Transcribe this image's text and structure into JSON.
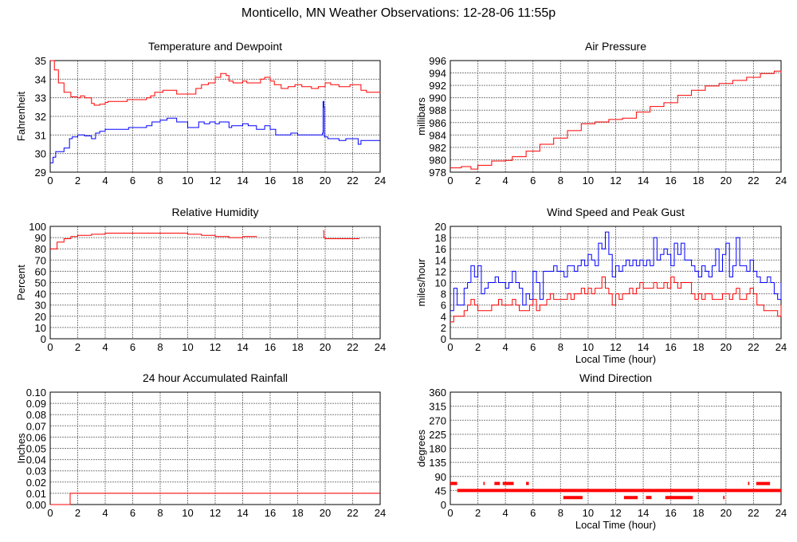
{
  "title": "Monticello, MN Weather Observations: 12-28-06 11:55p",
  "colors": {
    "red": "#ff0000",
    "blue": "#0000ff",
    "grid": "#808080"
  },
  "chart_data": [
    {
      "type": "line",
      "title": "Temperature and Dewpoint",
      "xlabel": "",
      "ylabel": "Fahrenheit",
      "xlim": [
        0,
        24
      ],
      "ylim": [
        29,
        35
      ],
      "xticks": [
        0,
        2,
        4,
        6,
        8,
        10,
        12,
        14,
        16,
        18,
        20,
        22,
        24
      ],
      "yticks": [
        29,
        30,
        31,
        32,
        33,
        34,
        35
      ],
      "grid": true,
      "series": [
        {
          "name": "Temperature",
          "color": "#ff0000",
          "x": [
            0,
            0.3,
            0.6,
            1,
            1.5,
            2,
            2.2,
            2.5,
            3,
            3.2,
            3.6,
            4,
            4.2,
            5.5,
            5.6,
            6.5,
            7,
            7.3,
            7.6,
            8,
            8.2,
            9,
            9.2,
            10.3,
            10.6,
            11,
            11.5,
            12,
            12.4,
            12.8,
            13,
            13.3,
            13.8,
            14,
            14.3,
            15,
            15.3,
            15.6,
            16,
            16.3,
            16.8,
            17.3,
            17.8,
            18.3,
            19,
            19.5,
            20,
            20.4,
            21,
            21.8,
            22.2,
            22.6,
            23,
            23.8,
            24
          ],
          "y": [
            35,
            34.5,
            33.8,
            33.3,
            33.05,
            33,
            33.1,
            33,
            32.7,
            32.6,
            32.65,
            32.75,
            32.8,
            32.8,
            32.9,
            32.9,
            33,
            33.1,
            33.3,
            33.3,
            33.4,
            33.4,
            33.2,
            33.2,
            33.5,
            33.7,
            33.8,
            34.1,
            34.3,
            34.2,
            33.9,
            33.8,
            33.8,
            33.9,
            33.8,
            33.8,
            34,
            34.1,
            33.9,
            33.7,
            33.5,
            33.6,
            33.7,
            33.6,
            33.5,
            33.6,
            33.8,
            33.7,
            33.6,
            33.7,
            33.7,
            33.4,
            33.3,
            33.3,
            33.25
          ]
        },
        {
          "name": "Dewpoint",
          "color": "#0000ff",
          "x": [
            0,
            0.2,
            0.4,
            1,
            1.4,
            1.6,
            2,
            2.5,
            3,
            3.3,
            3.6,
            4,
            5.5,
            5.7,
            7,
            7.4,
            8,
            8.5,
            9,
            9.2,
            9.8,
            10,
            10.4,
            10.8,
            11.2,
            11.6,
            12,
            12.3,
            13,
            13.2,
            14,
            14.4,
            15,
            15.6,
            16,
            16.4,
            17.5,
            18,
            19.5,
            19.8,
            19.85,
            19.9,
            19.95,
            20.2,
            21,
            21.5,
            22,
            22.4,
            22.6,
            24
          ],
          "y": [
            29.5,
            29.8,
            30.1,
            30.3,
            30.8,
            30.9,
            31,
            30.95,
            30.8,
            31.1,
            31.2,
            31.3,
            31.3,
            31.4,
            31.5,
            31.7,
            31.8,
            31.9,
            31.9,
            31.7,
            31.7,
            31.4,
            31.4,
            31.7,
            31.6,
            31.7,
            31.6,
            31.7,
            31.4,
            31.5,
            31.6,
            31.5,
            31.3,
            31.5,
            31.3,
            31,
            31.1,
            31,
            31,
            31.1,
            32.8,
            32.5,
            30.9,
            30.8,
            30.7,
            30.8,
            30.8,
            30.5,
            30.7,
            30.7
          ]
        }
      ]
    },
    {
      "type": "line",
      "title": "Air Pressure",
      "xlabel": "",
      "ylabel": "millibars",
      "xlim": [
        0,
        24
      ],
      "ylim": [
        978,
        996
      ],
      "xticks": [
        0,
        2,
        4,
        6,
        8,
        10,
        12,
        14,
        16,
        18,
        20,
        22,
        24
      ],
      "yticks": [
        978,
        980,
        982,
        984,
        986,
        988,
        990,
        992,
        994,
        996
      ],
      "grid": true,
      "series": [
        {
          "name": "Pressure",
          "color": "#ff0000",
          "x": [
            0,
            0.8,
            1.5,
            2,
            3,
            4,
            4.5,
            5.5,
            6.5,
            7.5,
            8.5,
            9.5,
            10.5,
            11.5,
            12.5,
            13.5,
            14.5,
            15.5,
            16.5,
            17.5,
            18.5,
            19.5,
            20.5,
            21.5,
            22.5,
            23.5,
            24
          ],
          "y": [
            978.7,
            978.9,
            978.5,
            979.1,
            979.8,
            979.9,
            980.5,
            981.4,
            982.5,
            983.5,
            984.7,
            985.8,
            986.1,
            986.5,
            986.7,
            987.7,
            988.6,
            989.2,
            990.4,
            991.2,
            991.9,
            992.3,
            992.8,
            993.3,
            993.9,
            994.3,
            994.0
          ]
        }
      ]
    },
    {
      "type": "line",
      "title": "Relative Humidity",
      "xlabel": "",
      "ylabel": "Percent",
      "xlim": [
        0,
        24
      ],
      "ylim": [
        0,
        100
      ],
      "xticks": [
        0,
        2,
        4,
        6,
        8,
        10,
        12,
        14,
        16,
        18,
        20,
        22,
        24
      ],
      "yticks": [
        0,
        10,
        20,
        30,
        40,
        50,
        60,
        70,
        80,
        90,
        100
      ],
      "grid": true,
      "series": [
        {
          "name": "Humidity",
          "color": "#ff0000",
          "x": [
            0,
            0.5,
            1,
            1.5,
            2,
            3,
            4,
            9,
            10,
            11,
            12,
            13,
            14,
            15,
            19.8,
            19.85,
            19.9,
            20,
            22.5
          ],
          "y": [
            80,
            86,
            89,
            91,
            92,
            93,
            94,
            94,
            93,
            92,
            91,
            90,
            91,
            90.5,
            null,
            96,
            90,
            89,
            89
          ]
        }
      ]
    },
    {
      "type": "line",
      "title": "Wind Speed and Peak Gust",
      "xlabel": "Local Time (hour)",
      "ylabel": "miles/hour",
      "xlim": [
        0,
        24
      ],
      "ylim": [
        0,
        20
      ],
      "xticks": [
        0,
        2,
        4,
        6,
        8,
        10,
        12,
        14,
        16,
        18,
        20,
        22,
        24
      ],
      "yticks": [
        0,
        2,
        4,
        6,
        8,
        10,
        12,
        14,
        16,
        18,
        20
      ],
      "grid": true,
      "x_step": 0.25,
      "series": [
        {
          "name": "Peak Gust",
          "color": "#0000ff",
          "y": [
            5,
            9,
            6,
            6,
            9,
            10,
            13,
            11,
            13,
            8,
            9,
            10,
            10,
            11,
            10,
            10,
            9,
            10,
            12,
            10,
            9,
            6,
            8,
            7,
            12,
            10,
            7,
            12,
            12,
            12,
            13,
            12,
            12,
            11,
            13,
            13,
            12,
            13,
            14,
            13,
            15,
            14,
            13,
            17,
            16,
            19,
            15,
            11,
            13,
            12,
            13,
            14,
            13,
            14,
            13,
            14,
            13,
            14,
            13,
            18,
            14,
            15,
            16,
            15,
            13,
            17,
            15,
            17,
            14,
            14,
            13,
            12,
            11,
            13,
            12,
            11,
            13,
            16,
            12,
            15,
            17,
            11,
            13,
            18,
            13,
            13,
            12,
            14,
            12,
            11,
            10,
            10,
            11,
            10,
            8,
            7,
            10
          ]
        },
        {
          "name": "Wind Speed",
          "color": "#ff0000",
          "y": [
            3,
            4,
            4,
            4,
            5,
            6,
            7,
            6,
            5,
            5,
            5,
            5,
            6,
            6,
            7,
            6,
            6,
            6,
            7,
            6,
            5,
            5,
            5,
            6,
            7,
            5,
            6,
            6,
            7,
            8,
            7,
            7,
            7,
            7,
            8,
            7,
            8,
            8,
            9,
            8,
            9,
            8,
            9,
            9,
            11,
            9,
            8,
            6,
            8,
            7,
            8,
            8,
            9,
            8,
            9,
            10,
            9,
            9,
            9,
            10,
            9,
            9,
            10,
            9,
            11,
            10,
            9,
            10,
            10,
            10,
            8,
            7,
            8,
            7,
            8,
            8,
            7,
            7,
            7,
            8,
            8,
            7,
            8,
            9,
            7,
            7,
            8,
            9,
            8,
            6,
            6,
            5,
            5,
            5,
            5,
            4,
            6
          ]
        }
      ]
    },
    {
      "type": "line",
      "title": "24 hour Accumulated Rainfall",
      "xlabel": "",
      "ylabel": "Inches",
      "xlim": [
        0,
        24
      ],
      "ylim": [
        0,
        0.1
      ],
      "xticks": [
        0,
        2,
        4,
        6,
        8,
        10,
        12,
        14,
        16,
        18,
        20,
        22,
        24
      ],
      "yticks": [
        "0.00",
        "0.01",
        "0.02",
        "0.03",
        "0.04",
        "0.05",
        "0.06",
        "0.07",
        "0.08",
        "0.09",
        "0.10"
      ],
      "grid": true,
      "series": [
        {
          "name": "Rainfall",
          "color": "#ff0000",
          "x": [
            0,
            1.4,
            1.45,
            24
          ],
          "y": [
            0,
            0,
            0.01,
            0.01
          ]
        }
      ]
    },
    {
      "type": "scatter",
      "title": "Wind Direction",
      "xlabel": "Local Time (hour)",
      "ylabel": "degrees",
      "xlim": [
        0,
        24
      ],
      "ylim": [
        0,
        360
      ],
      "xticks": [
        0,
        2,
        4,
        6,
        8,
        10,
        12,
        14,
        16,
        18,
        20,
        22,
        24
      ],
      "yticks": [
        0,
        45,
        90,
        135,
        180,
        225,
        270,
        315,
        360
      ],
      "grid": true,
      "series": [
        {
          "name": "Direction",
          "color": "#ff0000",
          "segments": [
            {
              "from": 0,
              "to": 0.5,
              "deg": 67.5
            },
            {
              "from": 0.5,
              "to": 24,
              "deg": 45
            },
            {
              "from": 2.4,
              "to": 2.5,
              "deg": 67.5
            },
            {
              "from": 3.2,
              "to": 3.6,
              "deg": 67.5
            },
            {
              "from": 3.8,
              "to": 4.6,
              "deg": 67.5
            },
            {
              "from": 5.5,
              "to": 5.7,
              "deg": 67.5
            },
            {
              "from": 8.2,
              "to": 9.6,
              "deg": 22.5
            },
            {
              "from": 12.6,
              "to": 13.6,
              "deg": 22.5
            },
            {
              "from": 14.2,
              "to": 14.6,
              "deg": 22.5
            },
            {
              "from": 15.6,
              "to": 17.6,
              "deg": 22.5
            },
            {
              "from": 19.8,
              "to": 19.9,
              "deg": 22.5
            },
            {
              "from": 21.6,
              "to": 21.7,
              "deg": 67.5
            },
            {
              "from": 22.2,
              "to": 23.2,
              "deg": 67.5
            }
          ]
        }
      ]
    }
  ]
}
